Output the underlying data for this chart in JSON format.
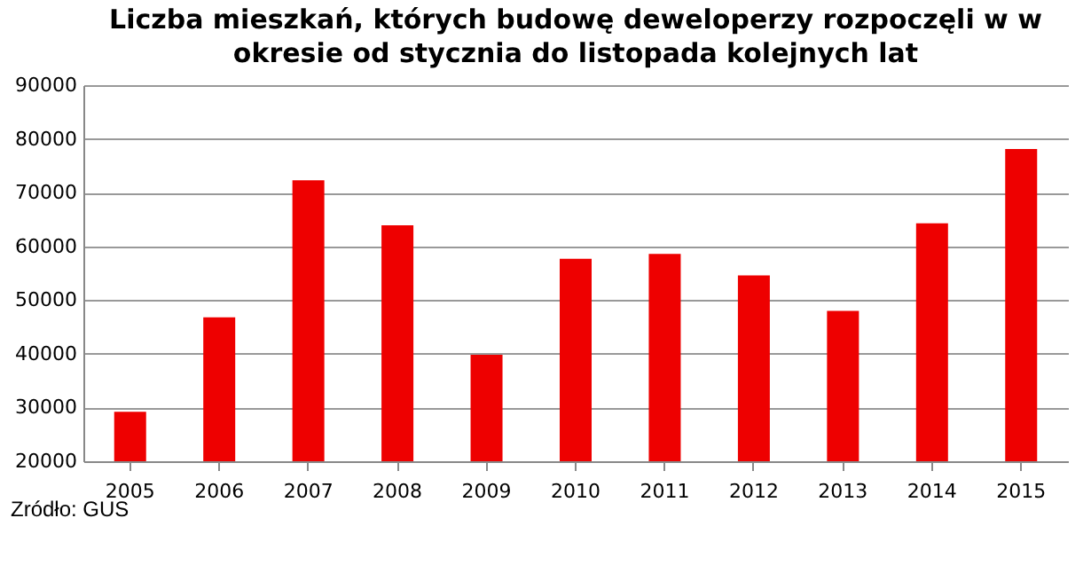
{
  "chart_data": {
    "type": "bar",
    "title": "Liczba mieszkań, których budowę deweloperzy rozpoczęli w w okresie od stycznia do listopada kolejnych lat",
    "categories": [
      "2005",
      "2006",
      "2007",
      "2008",
      "2009",
      "2010",
      "2011",
      "2012",
      "2013",
      "2014",
      "2015"
    ],
    "values": [
      29200,
      46800,
      72300,
      63900,
      39800,
      57700,
      58600,
      54600,
      48000,
      64300,
      78100
    ],
    "color": "#ee0000",
    "ylim": [
      20000,
      90000
    ],
    "yticks": [
      20000,
      30000,
      40000,
      50000,
      60000,
      70000,
      80000,
      90000
    ],
    "grid": "y",
    "annotations": [
      "Źródło: GUS"
    ]
  }
}
